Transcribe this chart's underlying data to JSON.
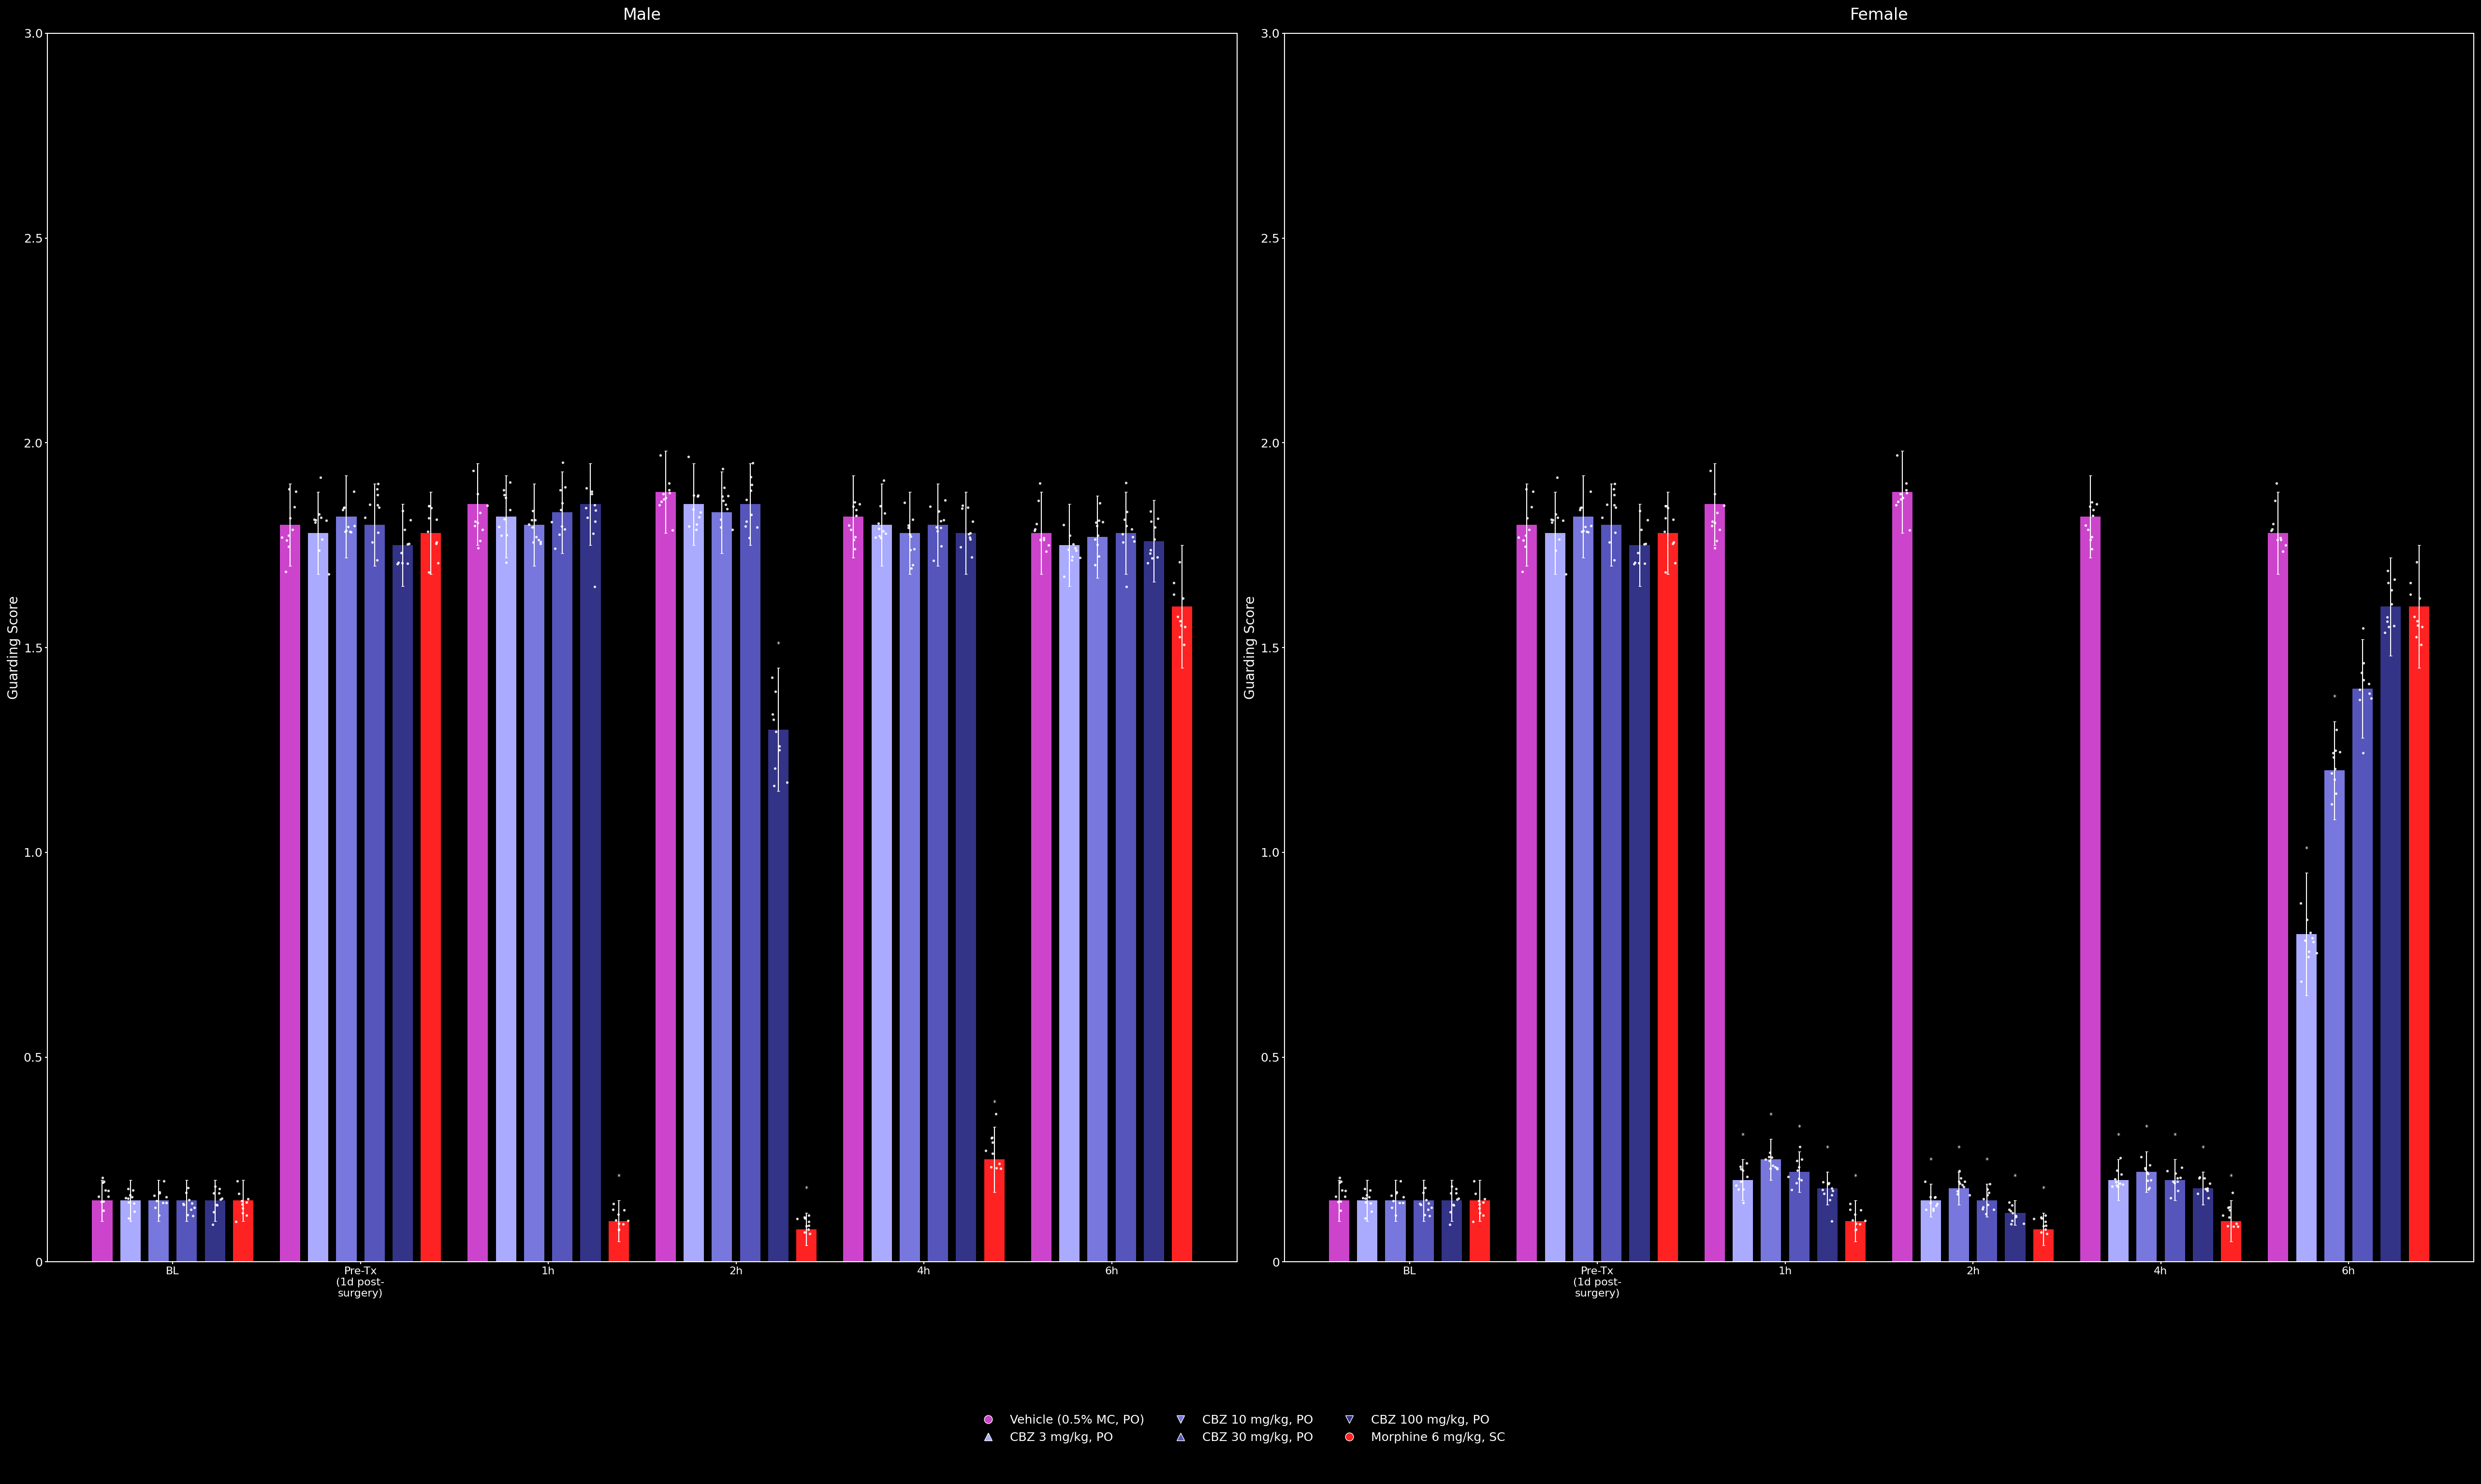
{
  "background_color": "#000000",
  "text_color": "#ffffff",
  "title_male": "Male",
  "title_female": "Female",
  "ylabel": "Guarding Score",
  "time_labels": [
    "BL",
    "Pre-Tx\n(1d post-\nsurgery)",
    "1h",
    "2h",
    "4h",
    "6h"
  ],
  "time_labels_short": [
    "BL",
    "Pre",
    "1h",
    "2h",
    "4h",
    "6h"
  ],
  "groups": [
    "Vehicle",
    "CBZ 3",
    "CBZ 10",
    "CBZ 30",
    "CBZ 100",
    "Morphine"
  ],
  "group_colors": [
    "#9933cc",
    "#6666ff",
    "#4444cc",
    "#2222aa",
    "#000099",
    "#ff0000"
  ],
  "group_colors_male": [
    "#cc00cc",
    "#9999ff",
    "#6666cc",
    "#4444aa",
    "#222288",
    "#ff2222"
  ],
  "group_colors_female": [
    "#cc00cc",
    "#9999ff",
    "#6666cc",
    "#4444aa",
    "#222288",
    "#ff2222"
  ],
  "n_per_group": 10,
  "ylim": [
    0,
    3.0
  ],
  "yticks": [
    0,
    0.5,
    1.0,
    1.5,
    2.0,
    2.5,
    3.0
  ],
  "male_data": {
    "BL": [
      0.15,
      0.15,
      0.15,
      0.15,
      0.15,
      0.15
    ],
    "Pre": [
      1.8,
      1.78,
      1.82,
      1.8,
      1.75,
      1.78
    ],
    "1h": [
      1.85,
      1.82,
      1.8,
      1.83,
      1.85,
      0.1
    ],
    "2h": [
      1.88,
      1.85,
      1.83,
      1.85,
      1.3,
      0.08
    ],
    "4h": [
      1.82,
      1.8,
      1.78,
      1.8,
      1.78,
      0.25
    ],
    "6h": [
      1.78,
      1.75,
      1.77,
      1.78,
      1.76,
      1.6
    ]
  },
  "male_sem": {
    "BL": [
      0.05,
      0.05,
      0.05,
      0.05,
      0.05,
      0.05
    ],
    "Pre": [
      0.1,
      0.1,
      0.1,
      0.1,
      0.1,
      0.1
    ],
    "1h": [
      0.1,
      0.1,
      0.1,
      0.1,
      0.1,
      0.05
    ],
    "2h": [
      0.1,
      0.1,
      0.1,
      0.1,
      0.15,
      0.04
    ],
    "4h": [
      0.1,
      0.1,
      0.1,
      0.1,
      0.1,
      0.08
    ],
    "6h": [
      0.1,
      0.1,
      0.1,
      0.1,
      0.1,
      0.15
    ]
  },
  "female_data": {
    "BL": [
      0.15,
      0.15,
      0.15,
      0.15,
      0.15,
      0.15
    ],
    "Pre": [
      1.8,
      1.78,
      1.82,
      1.8,
      1.75,
      1.78
    ],
    "1h": [
      1.85,
      0.2,
      0.25,
      0.22,
      0.18,
      0.1
    ],
    "2h": [
      1.88,
      0.15,
      0.18,
      0.15,
      0.12,
      0.08
    ],
    "4h": [
      1.82,
      0.2,
      0.22,
      0.2,
      0.18,
      0.1
    ],
    "6h": [
      1.78,
      0.8,
      1.2,
      1.4,
      1.6,
      1.6
    ]
  },
  "female_sem": {
    "BL": [
      0.05,
      0.05,
      0.05,
      0.05,
      0.05,
      0.05
    ],
    "Pre": [
      0.1,
      0.1,
      0.1,
      0.1,
      0.1,
      0.1
    ],
    "1h": [
      0.1,
      0.05,
      0.05,
      0.05,
      0.04,
      0.05
    ],
    "2h": [
      0.1,
      0.04,
      0.04,
      0.04,
      0.03,
      0.04
    ],
    "4h": [
      0.1,
      0.05,
      0.05,
      0.05,
      0.04,
      0.05
    ],
    "6h": [
      0.1,
      0.15,
      0.12,
      0.12,
      0.12,
      0.15
    ]
  },
  "sig_male": {
    "1h": [
      false,
      false,
      false,
      false,
      false,
      true
    ],
    "2h": [
      false,
      false,
      false,
      false,
      true,
      true
    ],
    "4h": [
      false,
      false,
      false,
      false,
      false,
      true
    ],
    "6h": [
      false,
      false,
      false,
      false,
      false,
      false
    ]
  },
  "sig_female": {
    "1h": [
      false,
      true,
      true,
      true,
      true,
      true
    ],
    "2h": [
      false,
      true,
      true,
      true,
      true,
      true
    ],
    "4h": [
      false,
      true,
      true,
      true,
      true,
      true
    ],
    "6h": [
      false,
      true,
      true,
      false,
      false,
      false
    ]
  },
  "legend_labels": [
    "Vehicle (0.5% MC, PO)",
    "CBZ 3 mg/kg, PO",
    "CBZ 10 mg/kg, PO",
    "CBZ 30 mg/kg, PO",
    "CBZ 100 mg/kg, PO",
    "Morphine 6 mg/kg, SC"
  ],
  "legend_colors": [
    "#cc44cc",
    "#aaaaff",
    "#7777dd",
    "#5555bb",
    "#333399",
    "#ff3333"
  ],
  "legend_markers": [
    "o",
    "^",
    "v",
    "^",
    "v",
    "o"
  ]
}
